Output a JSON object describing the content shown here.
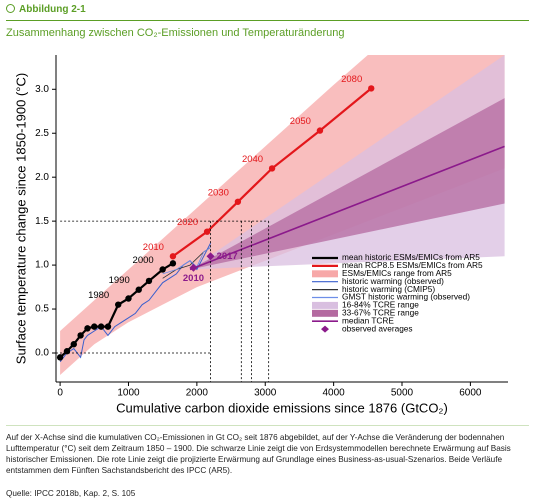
{
  "header": {
    "label": "Abbildung 2-1",
    "title": "Zusammenhang zwischen CO₂-Emissionen und Temperaturänderung"
  },
  "chart_data": {
    "type": "line",
    "xlabel": "Cumulative carbon dioxide emissions since 1876 (GtCO₂)",
    "ylabel": "Surface temperature change since 1850-1900 (°C)",
    "xlim": [
      -60,
      6550
    ],
    "ylim": [
      -0.33,
      3.39
    ],
    "xticks": [
      0,
      1000,
      2000,
      3000,
      4000,
      5000,
      6000
    ],
    "yticks": [
      {
        "value": 0,
        "label": "0.0"
      },
      {
        "value": 0.5,
        "label": "0.5"
      },
      {
        "value": 1,
        "label": "1.0"
      },
      {
        "value": 1.5,
        "label": "1.5"
      },
      {
        "value": 2,
        "label": "2.0"
      },
      {
        "value": 2.5,
        "label": "2.5"
      },
      {
        "value": 3,
        "label": "3.0"
      }
    ],
    "legend": "lower right",
    "dashed_guides": {
      "y": 1.5,
      "x": [
        2200,
        2650,
        2800,
        3050
      ]
    },
    "series": [
      {
        "name": "mean historic ESMs/EMICs from AR5",
        "kind": "line",
        "color": "#000000",
        "width": 2.2,
        "markers": true,
        "x": [
          0,
          100,
          200,
          300,
          400,
          500,
          600,
          700,
          850,
          1000,
          1150,
          1300,
          1500,
          1650
        ],
        "values": [
          -0.05,
          0.02,
          0.1,
          0.2,
          0.28,
          0.3,
          0.3,
          0.3,
          0.55,
          0.62,
          0.72,
          0.82,
          0.95,
          1.02
        ],
        "point_labels": [
          null,
          null,
          null,
          null,
          null,
          null,
          null,
          null,
          "1980",
          null,
          "1990",
          null,
          "2000",
          null
        ]
      },
      {
        "name": "mean RCP8.5 ESMs/EMICs from AR5",
        "kind": "line",
        "color": "#e3171b",
        "width": 2.2,
        "markers": true,
        "x": [
          1650,
          2150,
          2600,
          3100,
          3800,
          4550
        ],
        "values": [
          1.1,
          1.38,
          1.72,
          2.1,
          2.53,
          3.01
        ],
        "point_labels": [
          "2010",
          "2020",
          "2030",
          "2040",
          "2050",
          "2080"
        ]
      },
      {
        "name": "ESMs/EMICs range from AR5",
        "kind": "band",
        "color": "#f7a8a8",
        "x": [
          0,
          500,
          1000,
          1500,
          2000,
          2500,
          3000,
          3500,
          4000,
          4500,
          5000,
          5500,
          6000,
          6500
        ],
        "lower": [
          -0.25,
          0.1,
          0.35,
          0.55,
          0.75,
          0.9,
          1.05,
          1.2,
          1.35,
          1.5,
          1.65,
          1.8,
          1.95,
          2.1
        ],
        "upper": [
          0.25,
          0.6,
          0.95,
          1.3,
          1.65,
          2.0,
          2.35,
          2.7,
          3.05,
          3.39,
          3.39,
          3.39,
          3.39,
          3.39
        ]
      },
      {
        "name": "historic warming (observed)",
        "kind": "line",
        "color": "#3a5fcd",
        "width": 1,
        "x": [
          0,
          100,
          200,
          300,
          350,
          400,
          500,
          600,
          700,
          800,
          900,
          1000,
          1100,
          1200,
          1300,
          1400,
          1500,
          1600,
          1700,
          1800,
          1900,
          2000,
          2100,
          2200
        ],
        "values": [
          -0.1,
          0.0,
          0.05,
          -0.05,
          0.15,
          0.2,
          0.25,
          0.3,
          0.2,
          0.3,
          0.35,
          0.4,
          0.45,
          0.55,
          0.6,
          0.7,
          0.8,
          0.85,
          0.9,
          1.0,
          1.05,
          0.95,
          1.1,
          1.25
        ]
      },
      {
        "name": "historic warming (CMIP5)",
        "kind": "line",
        "color": "#333333",
        "width": 0.8,
        "x": [
          1500,
          1700,
          1900,
          2100,
          2200
        ],
        "values": [
          0.85,
          0.95,
          1.0,
          1.15,
          1.2
        ]
      },
      {
        "name": "GMST historic warming (observed)",
        "kind": "line",
        "color": "#6d8ee8",
        "width": 0.8,
        "x": [
          1500,
          1700,
          1900,
          2000,
          2100,
          2200
        ],
        "values": [
          0.9,
          0.95,
          1.05,
          0.98,
          1.15,
          1.2
        ]
      },
      {
        "name": "16-84% TCRE range",
        "kind": "band",
        "color": "#d9bfe0",
        "x": [
          1900,
          6500
        ],
        "lower": [
          0.95,
          1.1
        ],
        "upper": [
          0.95,
          3.39
        ]
      },
      {
        "name": "33-67% TCRE range",
        "kind": "band",
        "color": "#b46aa0",
        "x": [
          1900,
          6500
        ],
        "lower": [
          0.95,
          1.7
        ],
        "upper": [
          0.95,
          2.9
        ]
      },
      {
        "name": "median TCRE",
        "kind": "line",
        "color": "#8b1a8b",
        "width": 1.6,
        "x": [
          1900,
          6500
        ],
        "values": [
          0.95,
          2.35
        ]
      },
      {
        "name": "observed averages",
        "kind": "points",
        "color": "#8b1a8b",
        "x": [
          1950,
          2200
        ],
        "values": [
          0.97,
          1.1
        ],
        "point_labels": [
          "2010",
          "2017"
        ]
      }
    ]
  },
  "caption": "Auf der X-Achse sind die kumulativen CO₂-Emissionen in Gt CO₂ seit 1876 abgebildet, auf der Y-Achse die Veränderung der bodennahen Lufttemperatur (°C) seit dem Zeitraum 1850 – 1900. Die schwarze Linie zeigt die von Erdsystemmodellen berechnete Erwärmung auf Basis historischer Emissionen. Die rote Linie zeigt die projizierte Erwärmung auf Grundlage eines Business-as-usual-Szenarios. Beide Verläufe entstammen dem Fünften Sachstandsbericht des IPCC (AR5).",
  "source": "Quelle: IPCC 2018b, Kap. 2, S. 105"
}
